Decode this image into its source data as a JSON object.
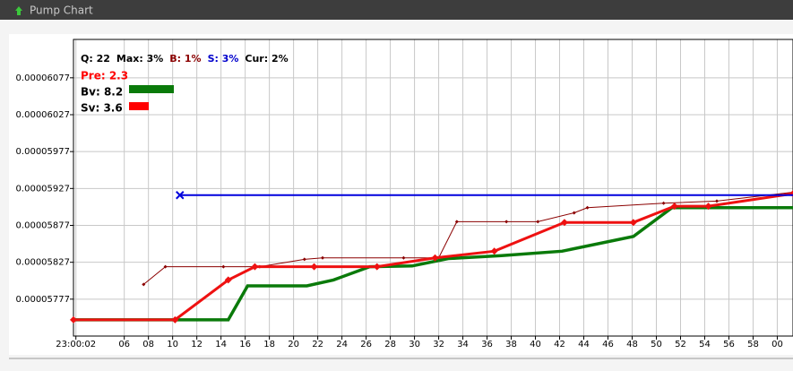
{
  "window": {
    "title": "Pump Chart"
  },
  "chart_data": {
    "type": "line",
    "info": [
      {
        "text": "Q: 22",
        "color": "#000000"
      },
      {
        "text": "Max: 3%",
        "color": "#000000"
      },
      {
        "text": "B: 1%",
        "color": "#8b0000"
      },
      {
        "text": "S: 3%",
        "color": "#0000cc"
      },
      {
        "text": "Cur: 2%",
        "color": "#000000"
      }
    ],
    "pre": {
      "text": "Pre: 2.3",
      "color": "#ff0000"
    },
    "bv": {
      "text": "Bv: 8.2",
      "color": "#0a7a0a"
    },
    "sv": {
      "text": "Sv: 3.6",
      "color": "#ff0000"
    },
    "xlim": [
      1.8,
      61.3
    ],
    "ylim": [
      5.727e-05,
      6.129e-05
    ],
    "xticks": [
      {
        "value": 2,
        "label": "23:00:02"
      },
      {
        "value": 6,
        "label": "06"
      },
      {
        "value": 8,
        "label": "08"
      },
      10,
      12,
      14,
      16,
      18,
      20,
      22,
      24,
      26,
      28,
      30,
      32,
      34,
      36,
      38,
      40,
      42,
      44,
      46,
      48,
      50,
      52,
      54,
      56,
      58,
      {
        "value": 60,
        "label": "00"
      }
    ],
    "yticks": [
      5.777e-05,
      5.827e-05,
      5.877e-05,
      5.927e-05,
      5.977e-05,
      6.027e-05,
      6.077e-05
    ],
    "grid": true,
    "series": [
      {
        "color": "#8b0000",
        "width": 1,
        "markers": true,
        "x": [
          7.6,
          9.4,
          14.2,
          17.2,
          20.9,
          22.4,
          29.1,
          32,
          33.5,
          37.6,
          40.2,
          43.2,
          44.3,
          50.6,
          55,
          61.3
        ],
        "values": [
          5.797e-05,
          5.821e-05,
          5.821e-05,
          5.821e-05,
          5.831e-05,
          5.833e-05,
          5.833e-05,
          5.833e-05,
          5.882e-05,
          5.882e-05,
          5.882e-05,
          5.894e-05,
          5.901e-05,
          5.907e-05,
          5.91e-05,
          5.922e-05
        ]
      },
      {
        "color": "#0a7a0a",
        "width": 3.5,
        "markers": false,
        "x": [
          1.8,
          14.6,
          16.2,
          21.1,
          23.3,
          26.3,
          29.8,
          32.8,
          37.2,
          42.2,
          48.1,
          51.3,
          61.3
        ],
        "values": [
          5.749e-05,
          5.749e-05,
          5.795e-05,
          5.795e-05,
          5.803e-05,
          5.821e-05,
          5.822e-05,
          5.832e-05,
          5.836e-05,
          5.842e-05,
          5.862e-05,
          5.901e-05,
          5.901e-05
        ]
      },
      {
        "color": "#ee1111",
        "width": 3,
        "markers": true,
        "x": [
          1.8,
          10.2,
          14.6,
          16.8,
          21.7,
          26.9,
          31.7,
          36.6,
          42.4,
          48.1,
          51.5,
          54.3,
          61.3
        ],
        "values": [
          5.749e-05,
          5.749e-05,
          5.803e-05,
          5.821e-05,
          5.821e-05,
          5.821e-05,
          5.833e-05,
          5.842e-05,
          5.881e-05,
          5.881e-05,
          5.903e-05,
          5.903e-05,
          5.92e-05
        ]
      },
      {
        "color": "#0000dd",
        "width": 2,
        "markers": false,
        "x": [
          10.6,
          61.3
        ],
        "values": [
          5.918e-05,
          5.918e-05
        ]
      }
    ]
  }
}
